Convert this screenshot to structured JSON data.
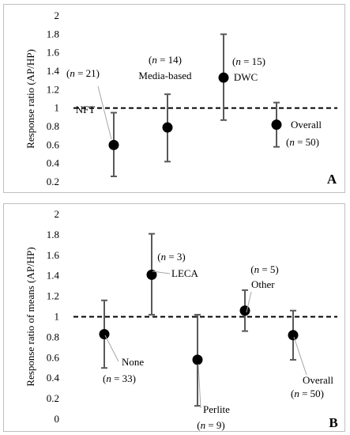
{
  "chart_data": [
    {
      "type": "scatter",
      "panel_label": "A",
      "ylabel": "Response ratio (AP/HP)",
      "ylim": [
        0.2,
        2
      ],
      "ticks": [
        "0.2",
        "0.4",
        "0.6",
        "0.8",
        "1",
        "1.2",
        "1.4",
        "1.6",
        "1.8",
        "2"
      ],
      "reference_line": 1,
      "points": [
        {
          "label": "NFT",
          "n": "(n = 21)",
          "value": 0.6,
          "low": 0.26,
          "high": 0.95
        },
        {
          "label": "Media-based",
          "n": "(n = 14)",
          "value": 0.79,
          "low": 0.42,
          "high": 1.15
        },
        {
          "label": "DWC",
          "n": "(n = 15)",
          "value": 1.33,
          "low": 0.87,
          "high": 1.8
        },
        {
          "label": "Overall",
          "n": "(n = 50)",
          "value": 0.82,
          "low": 0.58,
          "high": 1.06
        }
      ]
    },
    {
      "type": "scatter",
      "panel_label": "B",
      "ylabel": "Response ratio of means (AP/HP)",
      "ylim": [
        0,
        2
      ],
      "ticks": [
        "0",
        "0.2",
        "0.4",
        "0.6",
        "0.8",
        "1",
        "1.2",
        "1.4",
        "1.6",
        "1.8",
        "2"
      ],
      "reference_line": 1,
      "points": [
        {
          "label": "None",
          "n": "(n = 33)",
          "value": 0.83,
          "low": 0.5,
          "high": 1.16
        },
        {
          "label": "LECA",
          "n": "(n = 3)",
          "value": 1.41,
          "low": 1.02,
          "high": 1.81
        },
        {
          "label": "Perlite",
          "n": "(n = 9)",
          "value": 0.58,
          "low": 0.13,
          "high": 1.02
        },
        {
          "label": "Other",
          "n": "(n = 5)",
          "value": 1.06,
          "low": 0.86,
          "high": 1.26
        },
        {
          "label": "Overall",
          "n": "(n = 50)",
          "value": 0.82,
          "low": 0.58,
          "high": 1.06
        }
      ]
    }
  ]
}
